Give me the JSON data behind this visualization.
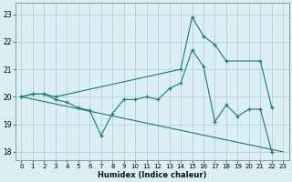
{
  "xlabel": "Humidex (Indice chaleur)",
  "xlim": [
    -0.5,
    23.5
  ],
  "ylim": [
    17.7,
    23.4
  ],
  "yticks": [
    18,
    19,
    20,
    21,
    22,
    23
  ],
  "xticks": [
    0,
    1,
    2,
    3,
    4,
    5,
    6,
    7,
    8,
    9,
    10,
    11,
    12,
    13,
    14,
    15,
    16,
    17,
    18,
    19,
    20,
    21,
    22,
    23
  ],
  "background_color": "#daeef3",
  "grid_color": "#b0d4d8",
  "line_color": "#1a7a6e",
  "series": [
    {
      "x": [
        0,
        1,
        2,
        3,
        14,
        15,
        16,
        17,
        18,
        21,
        22
      ],
      "y": [
        20.0,
        20.1,
        20.1,
        20.0,
        21.0,
        22.9,
        22.2,
        21.9,
        21.3,
        21.3,
        19.6
      ]
    },
    {
      "x": [
        0,
        1,
        2,
        3,
        4,
        5,
        6,
        7,
        8,
        9,
        10,
        11,
        12,
        13,
        14,
        15,
        16,
        17,
        18,
        19,
        20,
        21,
        22
      ],
      "y": [
        20.0,
        20.1,
        20.1,
        19.9,
        19.8,
        19.6,
        19.5,
        18.6,
        19.4,
        19.9,
        19.9,
        20.0,
        19.9,
        20.3,
        20.5,
        21.7,
        21.1,
        19.1,
        19.7,
        19.3,
        19.55,
        19.55,
        18.0
      ]
    },
    {
      "x": [
        0,
        23
      ],
      "y": [
        20.0,
        18.0
      ]
    }
  ]
}
